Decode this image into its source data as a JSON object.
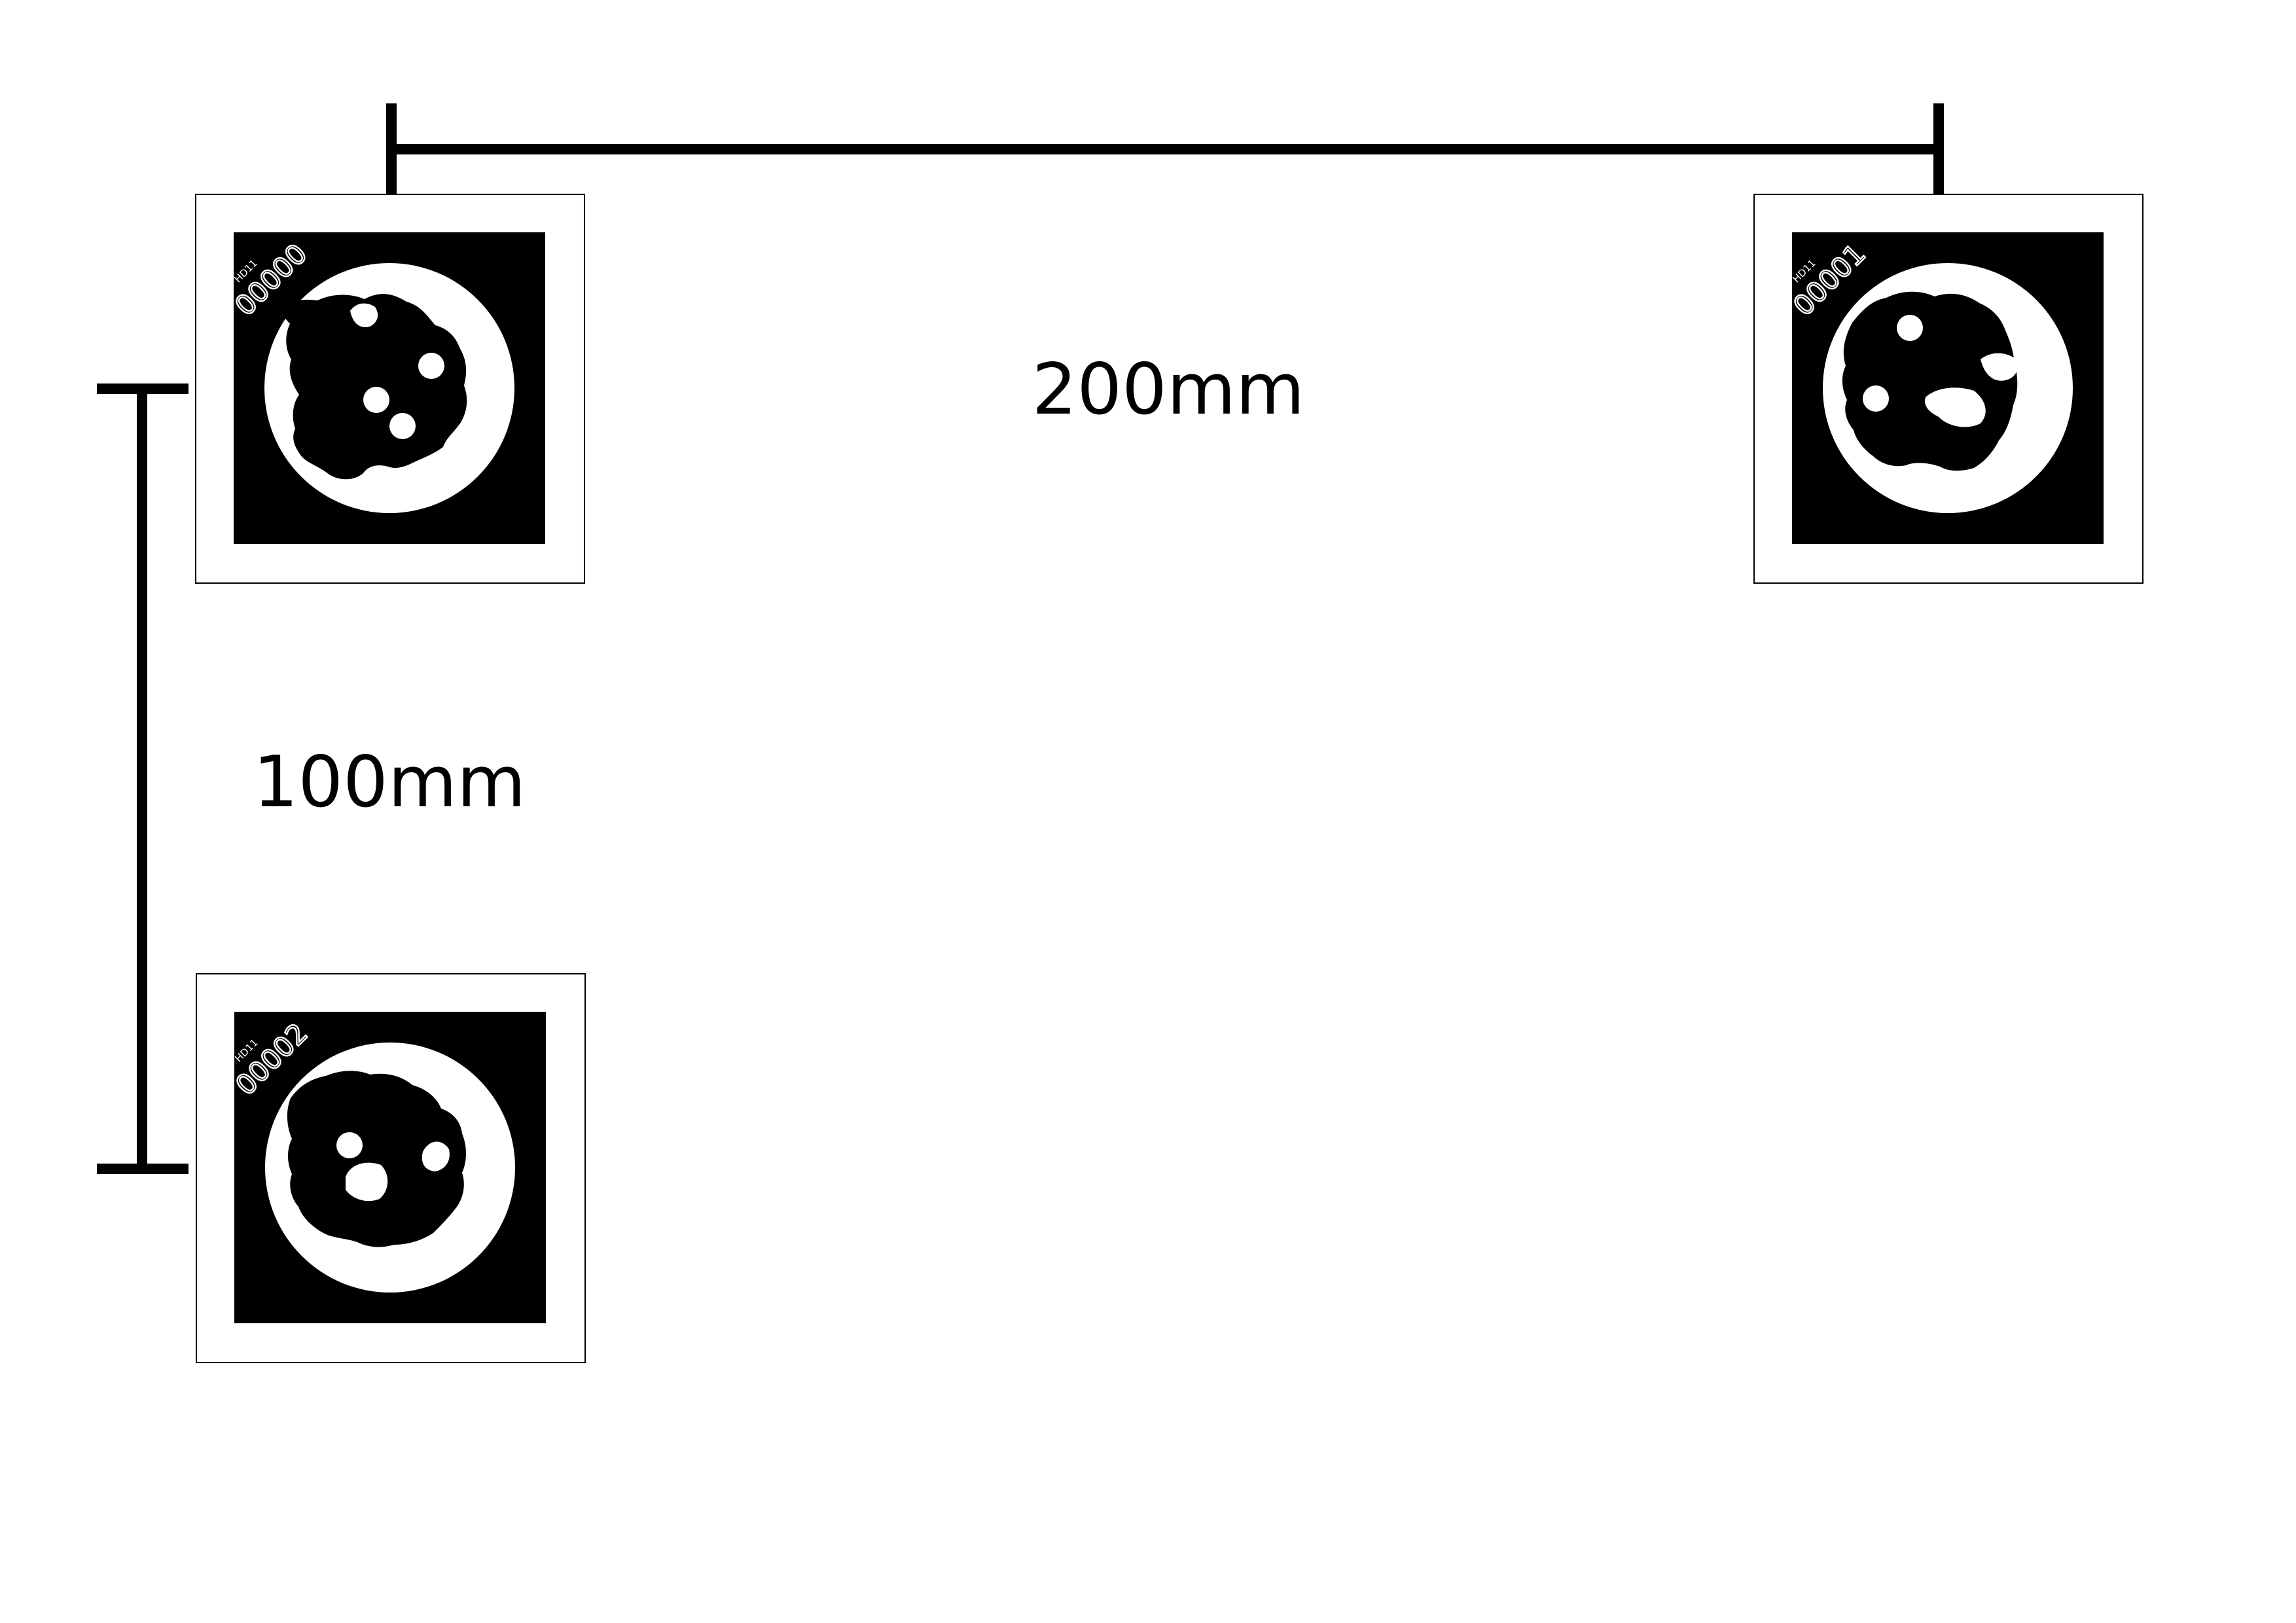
{
  "dimensions": {
    "horizontal_label": "200mm",
    "vertical_label": "100mm"
  },
  "markers": [
    {
      "dictionary": "HD11",
      "id": "00000"
    },
    {
      "dictionary": "HD11",
      "id": "00001"
    },
    {
      "dictionary": "HD11",
      "id": "00002"
    }
  ],
  "colors": {
    "ink": "#000000",
    "paper": "#ffffff"
  }
}
